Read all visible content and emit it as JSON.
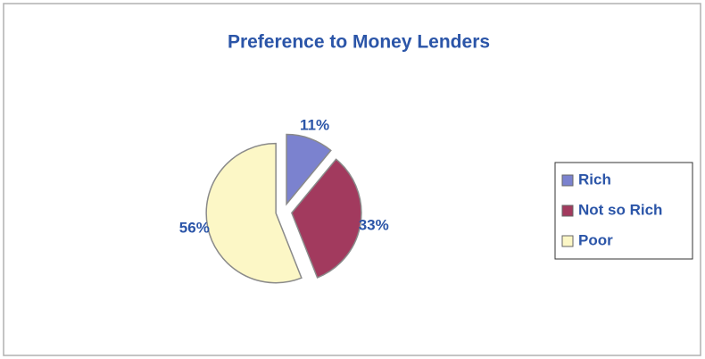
{
  "chart_data": {
    "type": "pie",
    "title": "Preference to Money Lenders",
    "categories": [
      "Rich",
      "Not so Rich",
      "Poor"
    ],
    "values": [
      11,
      33,
      56
    ],
    "value_labels": [
      "11%",
      "33%",
      "56%"
    ],
    "colors": [
      "#7b82cf",
      "#a23a5e",
      "#fcf7c6"
    ],
    "legend": "right"
  }
}
